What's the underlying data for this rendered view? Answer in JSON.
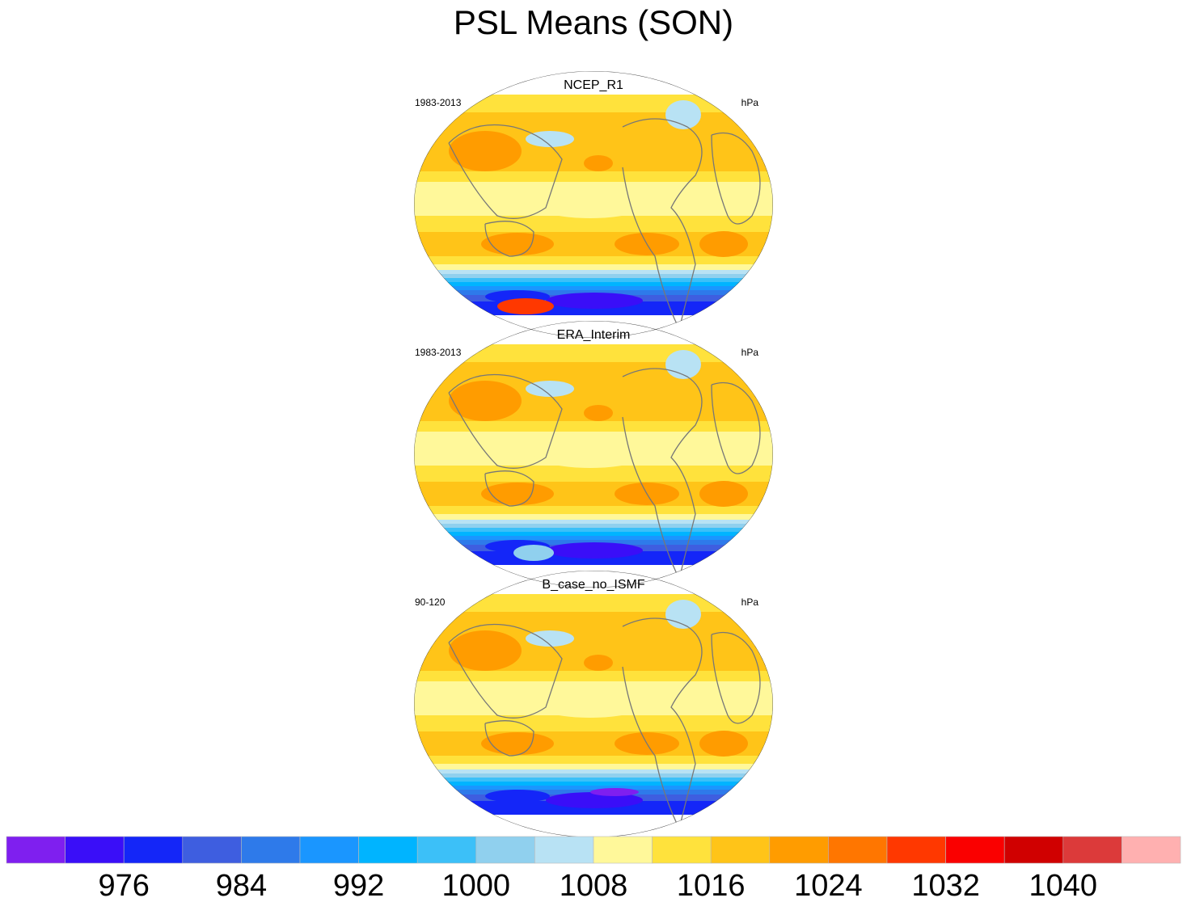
{
  "title": "PSL Means (SON)",
  "panels": [
    {
      "name": "NCEP_R1",
      "period": "1983-2013",
      "units": "hPa"
    },
    {
      "name": "ERA_Interim",
      "period": "1983-2013",
      "units": "hPa"
    },
    {
      "name": "B_case_no_ISMF",
      "period": "90-120",
      "units": "hPa"
    }
  ],
  "colorbar": {
    "levels": [
      972,
      976,
      980,
      984,
      988,
      992,
      996,
      1000,
      1004,
      1008,
      1012,
      1016,
      1020,
      1024,
      1028,
      1032,
      1036,
      1040,
      1044
    ],
    "labels": [
      "976",
      "984",
      "992",
      "1000",
      "1008",
      "1016",
      "1024",
      "1032",
      "1040"
    ],
    "colors": [
      "#7f1fef",
      "#3a0ef8",
      "#1426f8",
      "#3e5ee0",
      "#2e7aea",
      "#1a96ff",
      "#00b4ff",
      "#3cc0f8",
      "#90d0ee",
      "#b8e2f4",
      "#fff89a",
      "#ffe23c",
      "#ffc418",
      "#ff9c00",
      "#ff7600",
      "#ff3800",
      "#fa0000",
      "#d00000",
      "#dc3a3a",
      "#ffb0b0"
    ]
  }
}
